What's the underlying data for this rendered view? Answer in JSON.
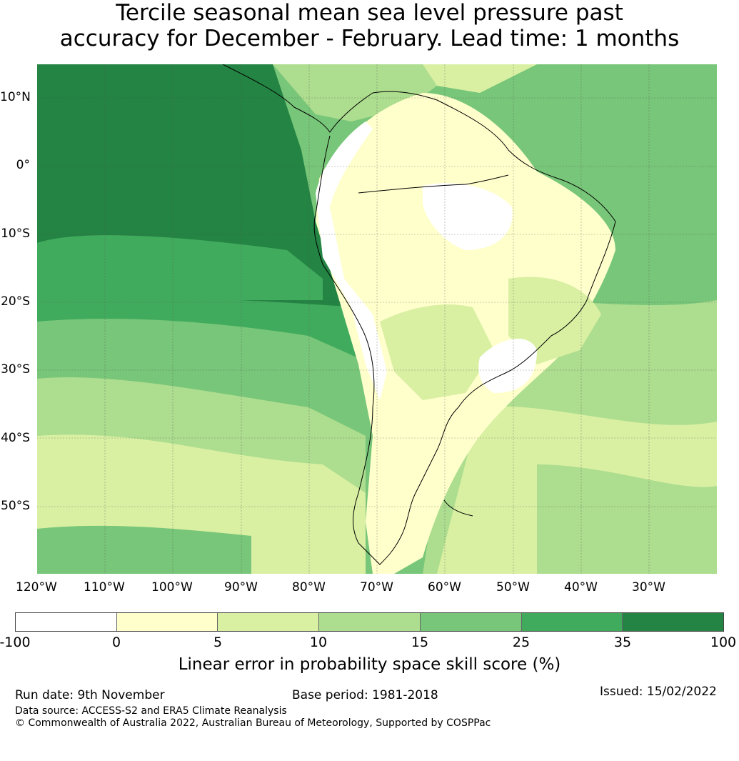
{
  "title": {
    "line1": "Tercile seasonal mean sea level pressure past",
    "line2": "accuracy for December - February. Lead time: 1 months"
  },
  "map": {
    "lat_labels": [
      "10°N",
      "0°",
      "10°S",
      "20°S",
      "30°S",
      "40°S",
      "50°S"
    ],
    "lon_labels": [
      "120°W",
      "110°W",
      "100°W",
      "90°W",
      "80°W",
      "70°W",
      "60°W",
      "50°W",
      "40°W",
      "30°W"
    ],
    "extent": {
      "lon_min": -120,
      "lon_max": -20,
      "lat_min": -60,
      "lat_max": 15
    },
    "region": "South America and surrounding oceans"
  },
  "colorbar": {
    "ticks": [
      "-100",
      "0",
      "5",
      "10",
      "15",
      "25",
      "35",
      "100"
    ],
    "bins": [
      {
        "range": "-100 to 0",
        "color": "#ffffff"
      },
      {
        "range": "0 to 5",
        "color": "#ffffcc"
      },
      {
        "range": "5 to 10",
        "color": "#d9f0a3"
      },
      {
        "range": "10 to 15",
        "color": "#addd8e"
      },
      {
        "range": "15 to 25",
        "color": "#78c679"
      },
      {
        "range": "25 to 35",
        "color": "#41ab5d"
      },
      {
        "range": "35 to 100",
        "color": "#238443"
      }
    ],
    "label": "Linear error in probability space skill score (%)"
  },
  "footer": {
    "run_date": "Run date: 9th November",
    "base_period": "Base period: 1981-2018",
    "issued": "Issued: 15/02/2022",
    "data_source": "Data source: ACCESS-S2 and ERA5 Climate Reanalysis",
    "copyright": "© Commonwealth of Australia 2022, Australian Bureau of Meteorology, Supported by COSPPac"
  }
}
